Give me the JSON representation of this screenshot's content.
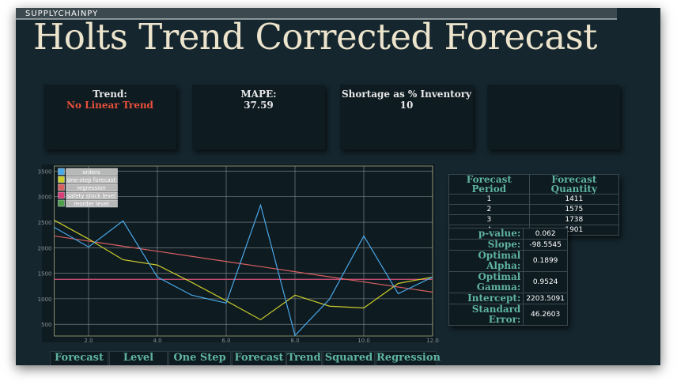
{
  "app": {
    "logo": "SUPPLYCHAINPY",
    "title": "Holts Trend Corrected Forecast"
  },
  "cards": [
    {
      "label": "Trend:",
      "value": "No Linear Trend"
    },
    {
      "label": "MAPE:",
      "value": "37.59"
    },
    {
      "label": "Shortage as % Inventory",
      "value": "10"
    },
    {}
  ],
  "forecast_table": {
    "headers": [
      "Forecast Period",
      "Forecast Quantity"
    ],
    "rows": [
      [
        "1",
        "1411"
      ],
      [
        "2",
        "1575"
      ],
      [
        "3",
        "1738"
      ],
      [
        "4",
        "1901"
      ]
    ]
  },
  "stats_table": {
    "rows": [
      [
        "p-value:",
        "0.062"
      ],
      [
        "Slope:",
        "-98.5545"
      ],
      [
        "Optimal Alpha:",
        "0.1899"
      ],
      [
        "Optimal Gamma:",
        "0.9524"
      ],
      [
        "Intercept:",
        "2203.5091"
      ],
      [
        "Standard Error:",
        "46.2603"
      ]
    ]
  },
  "bottom_headers": [
    "Forecast",
    "Level",
    "One Step",
    "Forecast",
    "Trend",
    "Squared",
    "Regression"
  ],
  "chart_data": {
    "type": "line",
    "x": [
      1,
      2,
      3,
      4,
      5,
      6,
      7,
      8,
      9,
      10,
      11,
      12
    ],
    "xlim": [
      1,
      12
    ],
    "xticks": [
      {
        "value": 2,
        "label": "2.0"
      },
      {
        "value": 4,
        "label": "4.0"
      },
      {
        "value": 6,
        "label": "6.0"
      },
      {
        "value": 8,
        "label": "8.0"
      },
      {
        "value": 10,
        "label": "10.0"
      },
      {
        "value": 12,
        "label": "12.0"
      }
    ],
    "ylim": [
      270,
      3600
    ],
    "yticks": [
      500,
      1000,
      1500,
      2000,
      2500,
      3000,
      3500
    ],
    "grid": true,
    "legend": "top-left",
    "series": [
      {
        "name": "orders",
        "color": "#4aa8e8",
        "values": [
          2400,
          2015,
          2525,
          1425,
          1070,
          915,
          2835,
          280,
          990,
          2230,
          1100,
          1425
        ]
      },
      {
        "name": "one-step forecast",
        "color": "#cccc2a",
        "values": [
          2540,
          2170,
          1765,
          1660,
          1320,
          960,
          590,
          1070,
          855,
          820,
          1300,
          1425
        ]
      },
      {
        "name": "regression",
        "color": "#d86060",
        "values": [
          2230,
          2130,
          2030,
          1930,
          1830,
          1730,
          1630,
          1530,
          1430,
          1330,
          1230,
          1130
        ]
      },
      {
        "name": "safety stock level",
        "color": "#d8407a",
        "values": [
          1380,
          1380,
          1380,
          1380,
          1380,
          1380,
          1380,
          1380,
          1380,
          1380,
          1380,
          1380
        ]
      },
      {
        "name": "reorder level",
        "color": "#4e9e4e",
        "values": [
          1380,
          1380,
          1380,
          1380,
          1380,
          1380,
          1380,
          1380,
          1380,
          1380,
          1380,
          1380
        ]
      }
    ]
  }
}
